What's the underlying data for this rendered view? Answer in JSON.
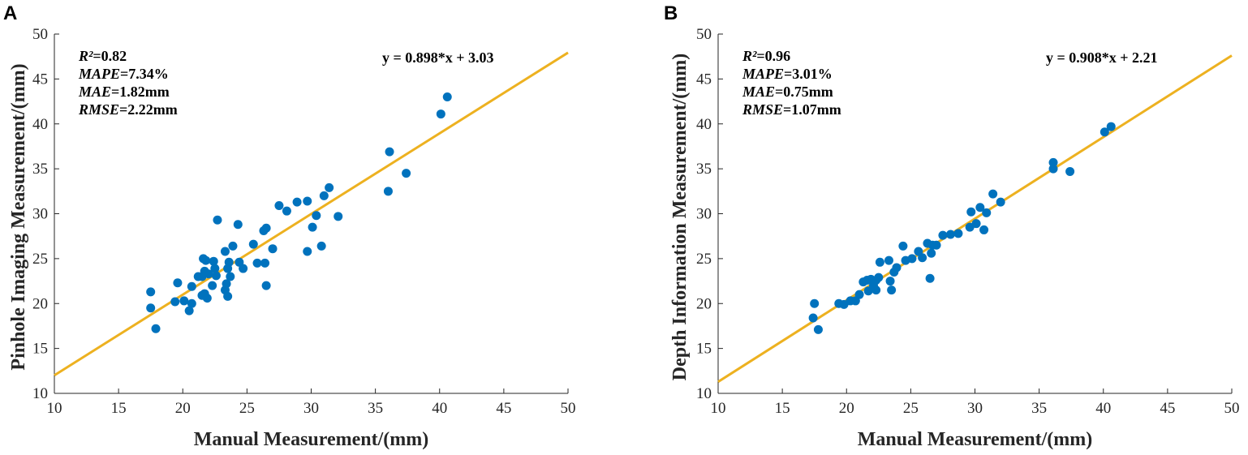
{
  "chart_data": [
    {
      "type": "scatter",
      "panel_label": "A",
      "xlabel": "Manual Measurement/(mm)",
      "ylabel": "Pinhole Imaging Measurement/(mm)",
      "xlim": [
        10,
        50
      ],
      "ylim": [
        10,
        50
      ],
      "xticks": [
        10,
        15,
        20,
        25,
        30,
        35,
        40,
        45,
        50
      ],
      "yticks": [
        10,
        15,
        20,
        25,
        30,
        35,
        40,
        45,
        50
      ],
      "grid": false,
      "stats": [
        {
          "name": "R²",
          "value": "=0.82"
        },
        {
          "name": "MAPE",
          "value": "=7.34%"
        },
        {
          "name": "MAE",
          "value": "=1.82mm"
        },
        {
          "name": "RMSE",
          "value": "=2.22mm"
        }
      ],
      "fit": {
        "equation": "y = 0.898*x + 3.03",
        "slope": 0.898,
        "intercept": 3.03,
        "color": "#EDB120"
      },
      "point_color": "#0072BD",
      "points": [
        [
          17.5,
          21.3
        ],
        [
          17.5,
          19.5
        ],
        [
          17.9,
          17.2
        ],
        [
          19.6,
          22.3
        ],
        [
          19.4,
          20.2
        ],
        [
          20.1,
          20.3
        ],
        [
          20.5,
          19.2
        ],
        [
          20.7,
          20.0
        ],
        [
          20.7,
          21.9
        ],
        [
          21.2,
          23.0
        ],
        [
          21.5,
          23.0
        ],
        [
          21.6,
          25.0
        ],
        [
          21.7,
          23.6
        ],
        [
          21.8,
          24.8
        ],
        [
          21.5,
          20.9
        ],
        [
          21.7,
          21.1
        ],
        [
          21.9,
          20.6
        ],
        [
          22.0,
          23.3
        ],
        [
          22.3,
          22.0
        ],
        [
          22.4,
          24.7
        ],
        [
          22.5,
          23.9
        ],
        [
          22.6,
          23.1
        ],
        [
          22.7,
          29.3
        ],
        [
          23.3,
          25.8
        ],
        [
          23.3,
          21.5
        ],
        [
          23.4,
          22.2
        ],
        [
          23.5,
          20.8
        ],
        [
          23.5,
          23.9
        ],
        [
          23.6,
          24.6
        ],
        [
          23.7,
          23.0
        ],
        [
          23.9,
          26.4
        ],
        [
          24.3,
          28.8
        ],
        [
          24.4,
          24.6
        ],
        [
          24.7,
          23.9
        ],
        [
          25.5,
          26.6
        ],
        [
          25.8,
          24.5
        ],
        [
          26.3,
          28.1
        ],
        [
          26.5,
          28.4
        ],
        [
          26.4,
          24.5
        ],
        [
          26.5,
          22.0
        ],
        [
          27.0,
          26.1
        ],
        [
          27.5,
          30.9
        ],
        [
          28.1,
          30.3
        ],
        [
          28.9,
          31.3
        ],
        [
          29.7,
          31.4
        ],
        [
          29.7,
          25.8
        ],
        [
          30.1,
          28.5
        ],
        [
          30.4,
          29.8
        ],
        [
          30.8,
          26.4
        ],
        [
          31.0,
          32.0
        ],
        [
          31.4,
          32.9
        ],
        [
          32.1,
          29.7
        ],
        [
          36.1,
          36.9
        ],
        [
          36.0,
          32.5
        ],
        [
          37.4,
          34.5
        ],
        [
          40.1,
          41.1
        ],
        [
          40.6,
          43.0
        ]
      ]
    },
    {
      "type": "scatter",
      "panel_label": "B",
      "xlabel": "Manual Measurement/(mm)",
      "ylabel": "Depth Information Measurement/(mm)",
      "xlim": [
        10,
        50
      ],
      "ylim": [
        10,
        50
      ],
      "xticks": [
        10,
        15,
        20,
        25,
        30,
        35,
        40,
        45,
        50
      ],
      "yticks": [
        10,
        15,
        20,
        25,
        30,
        35,
        40,
        45,
        50
      ],
      "grid": false,
      "stats": [
        {
          "name": "R²",
          "value": "=0.96"
        },
        {
          "name": "MAPE",
          "value": "=3.01%"
        },
        {
          "name": "MAE",
          "value": "=0.75mm"
        },
        {
          "name": "RMSE",
          "value": "=1.07mm"
        }
      ],
      "fit": {
        "equation": "y = 0.908*x + 2.21",
        "slope": 0.908,
        "intercept": 2.21,
        "color": "#EDB120"
      },
      "point_color": "#0072BD",
      "points": [
        [
          17.5,
          20.0
        ],
        [
          17.4,
          18.4
        ],
        [
          17.8,
          17.1
        ],
        [
          19.4,
          20.0
        ],
        [
          19.8,
          19.9
        ],
        [
          20.3,
          20.3
        ],
        [
          20.7,
          20.3
        ],
        [
          21.0,
          21.0
        ],
        [
          21.3,
          22.4
        ],
        [
          21.6,
          22.6
        ],
        [
          21.7,
          21.4
        ],
        [
          21.9,
          22.7
        ],
        [
          22.1,
          22.0
        ],
        [
          22.3,
          21.5
        ],
        [
          22.5,
          22.9
        ],
        [
          22.3,
          22.6
        ],
        [
          22.6,
          24.6
        ],
        [
          23.3,
          24.8
        ],
        [
          23.4,
          22.5
        ],
        [
          23.5,
          21.5
        ],
        [
          23.7,
          23.5
        ],
        [
          23.9,
          24.0
        ],
        [
          24.4,
          26.4
        ],
        [
          24.6,
          24.8
        ],
        [
          25.1,
          25.0
        ],
        [
          25.6,
          25.8
        ],
        [
          25.9,
          25.1
        ],
        [
          26.3,
          26.7
        ],
        [
          26.5,
          22.8
        ],
        [
          26.6,
          25.6
        ],
        [
          26.7,
          26.5
        ],
        [
          27.0,
          26.5
        ],
        [
          27.5,
          27.6
        ],
        [
          28.1,
          27.7
        ],
        [
          28.7,
          27.8
        ],
        [
          29.6,
          28.5
        ],
        [
          29.7,
          30.2
        ],
        [
          30.1,
          28.9
        ],
        [
          30.4,
          30.7
        ],
        [
          30.7,
          28.2
        ],
        [
          30.9,
          30.1
        ],
        [
          31.4,
          32.2
        ],
        [
          32.0,
          31.3
        ],
        [
          36.1,
          35.0
        ],
        [
          36.1,
          35.7
        ],
        [
          37.4,
          34.7
        ],
        [
          40.1,
          39.1
        ],
        [
          40.6,
          39.7
        ]
      ]
    }
  ]
}
